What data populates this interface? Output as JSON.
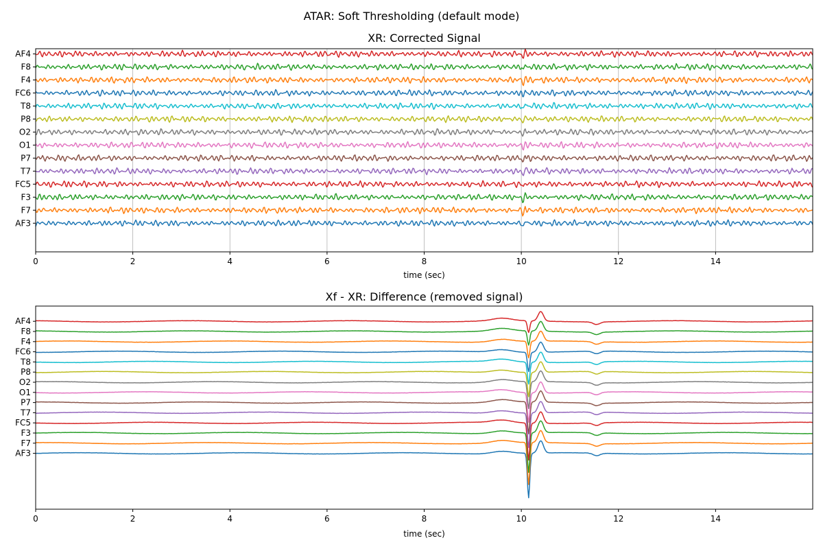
{
  "figure": {
    "suptitle": "ATAR: Soft Thresholding (default mode)",
    "channels": [
      "AF3",
      "F7",
      "F3",
      "FC5",
      "T7",
      "P7",
      "O1",
      "O2",
      "P8",
      "T8",
      "FC6",
      "F4",
      "F8",
      "AF4"
    ],
    "colors": [
      "#1f77b4",
      "#ff7f0e",
      "#2ca02c",
      "#d62728",
      "#9467bd",
      "#8c564b",
      "#e377c2",
      "#7f7f7f",
      "#bcbd22",
      "#17becf",
      "#1f77b4",
      "#ff7f0e",
      "#2ca02c",
      "#d62728"
    ]
  },
  "chart_data": [
    {
      "type": "line",
      "title": "XR: Corrected Signal",
      "xlabel": "time (sec)",
      "ylabel": "",
      "xlim": [
        0,
        16
      ],
      "ylim": [
        -2.2,
        13.4
      ],
      "x_ticks": [
        0,
        2,
        4,
        6,
        8,
        10,
        12,
        14
      ],
      "x_tick_labels": [
        "0",
        "2",
        "4",
        "6",
        "8",
        "10",
        "12",
        "14"
      ],
      "grid": "vertical",
      "legend": "none",
      "channel_offsets": [
        0,
        1,
        2,
        3,
        4,
        5,
        6,
        7,
        8,
        9,
        10,
        11,
        12,
        13
      ],
      "description": "14 stacked EEG channel traces, roughly stationary oscillations of small amplitude with a transient around t=10 s",
      "series": [
        {
          "name": "AF3",
          "offset": 0
        },
        {
          "name": "F7",
          "offset": 1
        },
        {
          "name": "F3",
          "offset": 2
        },
        {
          "name": "FC5",
          "offset": 3
        },
        {
          "name": "T7",
          "offset": 4
        },
        {
          "name": "P7",
          "offset": 5
        },
        {
          "name": "O1",
          "offset": 6
        },
        {
          "name": "O2",
          "offset": 7
        },
        {
          "name": "P8",
          "offset": 8
        },
        {
          "name": "T8",
          "offset": 9
        },
        {
          "name": "FC6",
          "offset": 10
        },
        {
          "name": "F4",
          "offset": 11
        },
        {
          "name": "F8",
          "offset": 12
        },
        {
          "name": "AF4",
          "offset": 13
        }
      ]
    },
    {
      "type": "line",
      "title": "Xf - XR: Difference (removed signal)",
      "xlabel": "time (sec)",
      "ylabel": "",
      "xlim": [
        0,
        16
      ],
      "ylim": [
        -5.5,
        14.5
      ],
      "x_ticks": [
        0,
        2,
        4,
        6,
        8,
        10,
        12,
        14
      ],
      "x_tick_labels": [
        "0",
        "2",
        "4",
        "6",
        "8",
        "10",
        "12",
        "14"
      ],
      "grid": "none",
      "legend": "none",
      "channel_offsets": [
        0,
        1,
        2,
        3,
        4,
        5,
        6,
        7,
        8,
        9,
        10,
        11,
        12,
        13
      ],
      "description": "removed signal: near-flat baselines with a large artifact spike around t=10.1 s reaching down to about -4.4 and up to about +14",
      "series": [
        {
          "name": "AF3",
          "offset": 0
        },
        {
          "name": "F7",
          "offset": 1
        },
        {
          "name": "F3",
          "offset": 2
        },
        {
          "name": "FC5",
          "offset": 3
        },
        {
          "name": "T7",
          "offset": 4
        },
        {
          "name": "P7",
          "offset": 5
        },
        {
          "name": "O1",
          "offset": 6
        },
        {
          "name": "O2",
          "offset": 7
        },
        {
          "name": "P8",
          "offset": 8
        },
        {
          "name": "T8",
          "offset": 9
        },
        {
          "name": "FC6",
          "offset": 10
        },
        {
          "name": "F4",
          "offset": 11
        },
        {
          "name": "F8",
          "offset": 12
        },
        {
          "name": "AF4",
          "offset": 13
        }
      ]
    }
  ]
}
